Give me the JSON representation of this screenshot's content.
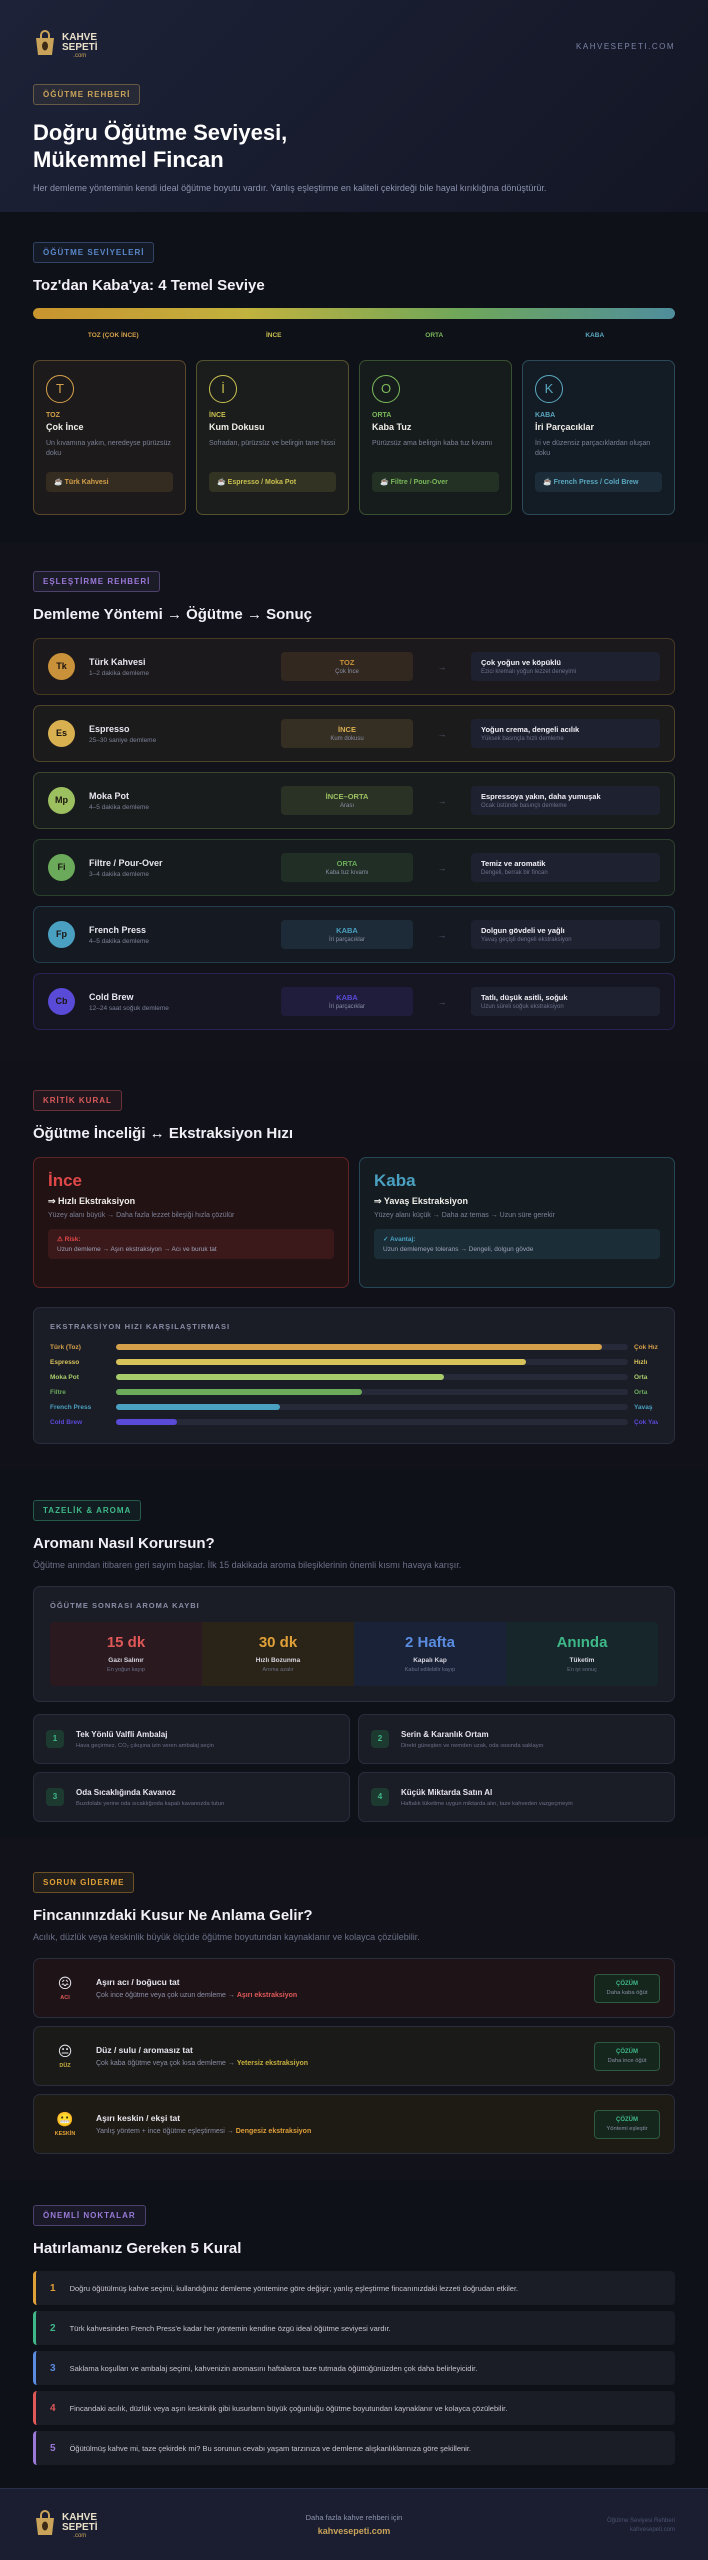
{
  "header": {
    "logo": [
      "KAHVE",
      "SEPETİ"
    ],
    "logo_sub": ".com",
    "site": "KAHVESEPETI.COM",
    "badge": "ÖĞÜTME REHBERİ",
    "title": [
      "Doğru Öğütme Seviyesi,",
      "Mükemmel Fincan"
    ],
    "subtitle": "Her demleme yönteminin kendi ideal öğütme boyutu vardır. Yanlış eşleştirme en kaliteli çekirdeği bile hayal kırıklığına dönüştürür."
  },
  "levels": {
    "badge": "ÖĞÜTME SEVİYELERİ",
    "heading": "Toz'dan Kaba'ya: 4 Temel Seviye",
    "scale": [
      "TOZ (ÇOK İNCE)",
      "İNCE",
      "ORTA",
      "KABA"
    ],
    "cards": [
      {
        "letter": "T",
        "label": "TOZ",
        "name": "Çok İnce",
        "desc": "Un kıvamına yakın, neredeyse pürüzsüz doku",
        "tag": "☕ Türk Kahvesi"
      },
      {
        "letter": "İ",
        "label": "İNCE",
        "name": "Kum Dokusu",
        "desc": "Sofradan, pürüzsüz ve belirgin tane hissi",
        "tag": "☕ Espresso / Moka Pot"
      },
      {
        "letter": "O",
        "label": "ORTA",
        "name": "Kaba Tuz",
        "desc": "Pürüzsüz ama belirgin kaba tuz kıvamı",
        "tag": "☕ Filtre / Pour-Over"
      },
      {
        "letter": "K",
        "label": "KABA",
        "name": "İri Parçacıklar",
        "desc": "İri ve düzensiz parçacıklardan oluşan doku",
        "tag": "☕ French Press / Cold Brew"
      }
    ]
  },
  "matching": {
    "badge": "EŞLEŞTİRME REHBERİ",
    "heading": "Demleme Yöntemi → Öğütme → Sonuç",
    "arrow": "→",
    "rows": [
      {
        "abbr": "Tk",
        "method": "Türk Kahvesi",
        "time": "1–2 dakika demleme",
        "grind": "TOZ",
        "grind_note": "Çok İnce",
        "result": "Çok yoğun ve köpüklü",
        "result_note": "Ezici kremalı yoğun lezzet deneyimi"
      },
      {
        "abbr": "Es",
        "method": "Espresso",
        "time": "25–30 saniye demleme",
        "grind": "İNCE",
        "grind_note": "Kum dokusu",
        "result": "Yoğun crema, dengeli acılık",
        "result_note": "Yüksek basınçla hızlı demleme"
      },
      {
        "abbr": "Mp",
        "method": "Moka Pot",
        "time": "4–5 dakika demleme",
        "grind": "İNCE–ORTA",
        "grind_note": "Arası",
        "result": "Espressoya yakın, daha yumuşak",
        "result_note": "Ocak üstünde basınçlı demleme"
      },
      {
        "abbr": "Fi",
        "method": "Filtre / Pour-Over",
        "time": "3–4 dakika demleme",
        "grind": "ORTA",
        "grind_note": "Kaba tuz kıvamı",
        "result": "Temiz ve aromatik",
        "result_note": "Dengeli, berrak bir fincan"
      },
      {
        "abbr": "Fp",
        "method": "French Press",
        "time": "4–5 dakika demleme",
        "grind": "KABA",
        "grind_note": "İri parçacıklar",
        "result": "Dolgun gövdeli ve yağlı",
        "result_note": "Yavaş geçişli dengeli ekstraksiyon"
      },
      {
        "abbr": "Cb",
        "method": "Cold Brew",
        "time": "12–24 saat soğuk demleme",
        "grind": "KABA",
        "grind_note": "İri parçacıklar",
        "result": "Tatlı, düşük asitli, soğuk",
        "result_note": "Uzun süreli soğuk ekstraksiyon"
      }
    ]
  },
  "rule": {
    "badge": "KRİTİK KURAL",
    "heading": "Öğütme İnceliği ↔ Ekstraksiyon Hızı",
    "cards": [
      {
        "title": "İnce",
        "subtitle": "⇒ Hızlı Ekstraksiyon",
        "desc": "Yüzey alanı büyük → Daha fazla lezzet bileşiği hızla çözülür",
        "note_label": "⚠ Risk:",
        "note": "Uzun demleme → Aşırı ekstraksiyon → Acı ve buruk tat"
      },
      {
        "title": "Kaba",
        "subtitle": "⇒ Yavaş Ekstraksiyon",
        "desc": "Yüzey alanı küçük → Daha az temas → Uzun süre gerekir",
        "note_label": "✓ Avantaj:",
        "note": "Uzun demlemeye tolerans → Dengeli, dolgun gövde"
      }
    ],
    "comparison": {
      "title": "EKSTRAKSİYON HIZI KARŞILAŞTIRMASI",
      "rows": [
        {
          "label": "Türk (Toz)",
          "value": 95,
          "speed": "Çok Hızlı"
        },
        {
          "label": "Espresso",
          "value": 80,
          "speed": "Hızlı"
        },
        {
          "label": "Moka Pot",
          "value": 64,
          "speed": "Orta"
        },
        {
          "label": "Filtre",
          "value": 48,
          "speed": "Orta"
        },
        {
          "label": "French Press",
          "value": 32,
          "speed": "Yavaş"
        },
        {
          "label": "Cold Brew",
          "value": 12,
          "speed": "Çok Yavaş"
        }
      ]
    }
  },
  "freshness": {
    "badge": "TAZELİK & AROMA",
    "heading": "Aromanı Nasıl Korursun?",
    "subtitle": "Öğütme anından itibaren geri sayım başlar. İlk 15 dakikada aroma bileşiklerinin önemli kısmı havaya karışır.",
    "loss": {
      "title": "ÖĞÜTME SONRASI AROMA KAYBI",
      "cells": [
        {
          "time": "15 dk",
          "label": "Gazı Salınır",
          "note": "En yoğun kayıp"
        },
        {
          "time": "30 dk",
          "label": "Hızlı Bozunma",
          "note": "Aroma azalır"
        },
        {
          "time": "2 Hafta",
          "label": "Kapalı Kap",
          "note": "Kabul edilebilir kayıp"
        },
        {
          "time": "Anında",
          "label": "Tüketim",
          "note": "En iyi sonuç"
        }
      ]
    },
    "tips": [
      {
        "num": 1,
        "title": "Tek Yönlü Valfli Ambalaj",
        "desc": "Hava geçirmez, CO₂ çıkışına izin veren ambalaj seçin"
      },
      {
        "num": 2,
        "title": "Serin & Karanlık Ortam",
        "desc": "Direkt güneşten ve nemden uzak, oda ısısında saklayın"
      },
      {
        "num": 3,
        "title": "Oda Sıcaklığında Kavanoz",
        "desc": "Buzdolabı yerine oda sıcaklığında kapalı kavanozda tutun"
      },
      {
        "num": 4,
        "title": "Küçük Miktarda Satın Al",
        "desc": "Haftalık tüketime uygun miktarda alın, taze kahveden vazgeçmeyin"
      }
    ]
  },
  "troubleshooting": {
    "badge": "SORUN GİDERME",
    "heading": "Fincanınızdaki Kusur Ne Anlama Gelir?",
    "subtitle": "Acılık, düzlük veya keskinlik büyük ölçüde öğütme boyutundan kaynaklanır ve kolayca çözülebilir.",
    "issues": [
      {
        "emoji": "😖",
        "tag": "ACI",
        "title": "Aşırı acı / boğucu tat",
        "cause": "Çok ince öğütme veya çok uzun demleme →",
        "effect": "Aşırı ekstraksiyon",
        "fix_label": "ÇÖZÜM",
        "fix": "Daha kaba öğüt"
      },
      {
        "emoji": "😐",
        "tag": "DÜZ",
        "title": "Düz / sulu / aromasız tat",
        "cause": "Çok kaba öğütme veya çok kısa demleme →",
        "effect": "Yetersiz ekstraksiyon",
        "fix_label": "ÇÖZÜM",
        "fix": "Daha ince öğüt"
      },
      {
        "emoji": "😬",
        "tag": "KESKİN",
        "title": "Aşırı keskin / ekşi tat",
        "cause": "Yanlış yöntem + ince öğütme eşleştirmesi →",
        "effect": "Dengesiz ekstraksiyon",
        "fix_label": "ÇÖZÜM",
        "fix": "Yöntemi eşleştir"
      }
    ]
  },
  "rules": {
    "badge": "ÖNEMLİ NOKTALAR",
    "heading": "Hatırlamanız Gereken 5 Kural",
    "items": [
      {
        "num": 1,
        "text": "Doğru öğütülmüş kahve seçimi, kullandığınız demleme yöntemine göre değişir; yanlış eşleştirme fincanınızdaki lezzeti doğrudan etkiler."
      },
      {
        "num": 2,
        "text": "Türk kahvesinden French Press'e kadar her yöntemin kendine özgü ideal öğütme seviyesi vardır."
      },
      {
        "num": 3,
        "text": "Saklama koşulları ve ambalaj seçimi, kahvenizin aromasını haftalarca taze tutmada öğüttüğünüzden çok daha belirleyicidir."
      },
      {
        "num": 4,
        "text": "Fincandaki acılık, düzlük veya aşırı keskinlik gibi kusurların büyük çoğunluğu öğütme boyutundan kaynaklanır ve kolayca çözülebilir."
      },
      {
        "num": 5,
        "text": "Öğütülmüş kahve mi, taze çekirdek mi? Bu sorunun cevabı yaşam tarzınıza ve demleme alışkanlıklarınıza göre şekillenir."
      }
    ]
  },
  "footer": {
    "logo": [
      "KAHVE",
      "SEPETİ"
    ],
    "logo_sub": ".com",
    "cta": "Daha fazla kahve rehberi için",
    "link": "kahvesepeti.com",
    "right": [
      "Öğütme Seviyesi Rehberi",
      "kahvesepeti.com"
    ]
  }
}
